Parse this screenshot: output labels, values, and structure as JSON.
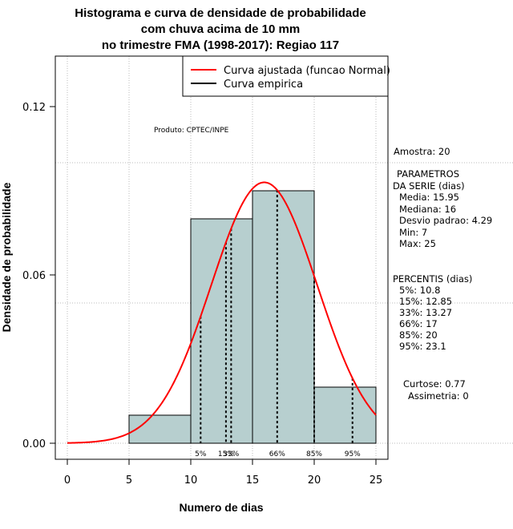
{
  "chart_data": {
    "type": "histogram",
    "title_lines": [
      "Histograma e curva de densidade de probabilidade",
      "com chuva acima de 10 mm",
      "no trimestre FMA (1998-2017): Regiao 117"
    ],
    "xlabel": "Numero de dias",
    "ylabel": "Densidade de probabilidade",
    "xlim": [
      -1,
      26
    ],
    "ylim": [
      -0.005,
      0.137
    ],
    "x_ticks": [
      0,
      5,
      10,
      15,
      20,
      25
    ],
    "x_tick_labels": [
      "0",
      "5",
      "10",
      "15",
      "20",
      "25"
    ],
    "y_ticks": [
      0.0,
      0.06,
      0.12
    ],
    "y_tick_labels": [
      "0.00",
      "0.06",
      "0.12"
    ],
    "y_gridlines": [
      0.0,
      0.05,
      0.1
    ],
    "x_gridlines": [
      0,
      5,
      10,
      15,
      20,
      25
    ],
    "bins": [
      {
        "from": 5,
        "to": 10,
        "density": 0.01
      },
      {
        "from": 10,
        "to": 15,
        "density": 0.08
      },
      {
        "from": 15,
        "to": 20,
        "density": 0.09
      },
      {
        "from": 20,
        "to": 25,
        "density": 0.02
      }
    ],
    "normal_fit": {
      "mean": 15.95,
      "sd": 4.29,
      "x_range": [
        0,
        25
      ]
    },
    "percentile_lines": [
      {
        "label": "5%",
        "x": 10.8
      },
      {
        "label": "15%",
        "x": 12.85
      },
      {
        "label": "33%",
        "x": 13.27
      },
      {
        "label": "66%",
        "x": 17
      },
      {
        "label": "85%",
        "x": 20
      },
      {
        "label": "95%",
        "x": 23.1
      }
    ],
    "legend": [
      {
        "label": "Curva ajustada (funcao Normal)",
        "color": "#ff0000"
      },
      {
        "label": "Curva empirica",
        "color": "#000000"
      }
    ],
    "product_label": "Produto: CPTEC/INPE",
    "colors": {
      "bar_fill": "#b7cfcf",
      "curve": "#ff0000",
      "grid": "#bbbbbb"
    }
  },
  "side_panel": {
    "sample": "Amostra: 20",
    "params_header_1": "PARAMETROS",
    "params_header_2": "DA SERIE (dias)",
    "params": [
      "Media: 15.95",
      "Mediana: 16",
      "Desvio padrao: 4.29",
      "Min: 7",
      "Max: 25"
    ],
    "percentis_header": "PERCENTIS (dias)",
    "percentis": [
      "5%: 10.8",
      "15%: 12.85",
      "33%: 13.27",
      "66%: 17",
      "85%: 20",
      "95%: 23.1"
    ],
    "curtose": "Curtose: 0.77",
    "assimetria": "Assimetria: 0"
  }
}
